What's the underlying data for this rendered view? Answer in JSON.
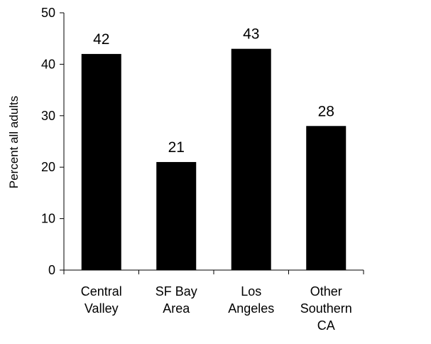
{
  "chart_data": {
    "type": "bar",
    "categories": [
      [
        "Central",
        "Valley"
      ],
      [
        "SF Bay",
        "Area"
      ],
      [
        "Los",
        "Angeles"
      ],
      [
        "Other",
        "Southern",
        "CA"
      ]
    ],
    "values": [
      42,
      21,
      43,
      28
    ],
    "data_labels": [
      "42",
      "21",
      "43",
      "28"
    ],
    "title": "",
    "xlabel": "",
    "ylabel": "Percent all adults",
    "ylim": [
      0,
      50
    ],
    "yticks": [
      0,
      10,
      20,
      30,
      40,
      50
    ],
    "ytick_labels": [
      "0",
      "10",
      "20",
      "30",
      "40",
      "50"
    ],
    "grid": false,
    "legend": "none",
    "bar_color": "#000000"
  }
}
